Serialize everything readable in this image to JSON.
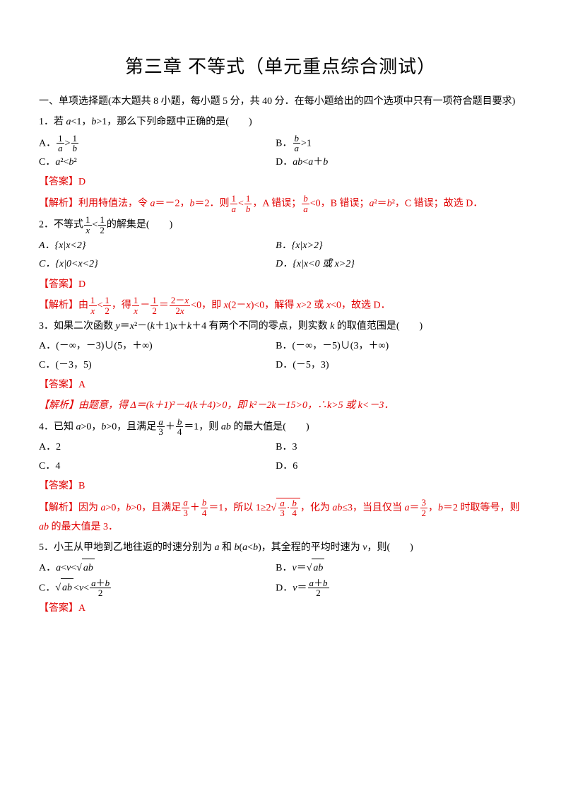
{
  "colors": {
    "text": "#000000",
    "answer": "#e10000",
    "background": "#ffffff"
  },
  "title": "第三章 不等式（单元重点综合测试）",
  "section": "一、单项选择题(本大题共 8 小题，每小题 5 分，共 40 分．在每小题给出的四个选项中只有一项符合题目要求)",
  "q1": {
    "stem_pre": "1．若 ",
    "cond1_l": "a",
    "cond1_r": "<1，",
    "cond2_l": "b",
    "cond2_r": ">1，那么下列命题中正确的是(",
    "A_pre": "A．",
    "B_pre": "B．",
    "B_post": ">1",
    "C_pre": "C．",
    "C_l": "a",
    "C_m": "²<",
    "C_r": "b",
    "C_post": "²",
    "D_pre": "D．",
    "D_l": "ab",
    "D_m": "<",
    "D_r": "a",
    "D_plus": "＋",
    "D_b": "b",
    "answer": "【答案】D",
    "sol_pre": "【解析】利用特值法，令 ",
    "sol_a": "a",
    "sol_eq1": "＝－2，",
    "sol_b": "b",
    "sol_eq2": "＝2．则",
    "sol_cmp": "，A 错误；",
    "sol_lt0": "<0，B 错误；",
    "sol_asq": "a",
    "sol_eq": "²＝",
    "sol_bsq": "b",
    "sol_eq3": "²，C 错误；故选 D．"
  },
  "q2": {
    "stem_pre": "2．不等式",
    "stem_post": "的解集是(",
    "A": "A．{x|x<2}",
    "B": "B．{x|x>2}",
    "C": "C．{x|0<x<2}",
    "D": "D．{x|x<0 或 x>2}",
    "answer": "【答案】D",
    "sol_pre": "【解析】由",
    "sol_mid1": "，得",
    "sol_mid2": "<0，即 ",
    "sol_x": "x",
    "sol_expr": "(2－",
    "sol_x2": "x",
    "sol_close": ")<0，解得 ",
    "sol_xgt": "x",
    "sol_gt2": ">2 或 ",
    "sol_xlt": "x",
    "sol_lt0": "<0，故选 D．"
  },
  "q3": {
    "stem_pre": "3．如果二次函数 ",
    "y": "y",
    "eq": "＝",
    "x": "x",
    "sq": "²－(",
    "k": "k",
    "p1": "＋1)",
    "xk": "x",
    "plus": "＋",
    "k2": "k",
    "p4": "＋4 有两个不同的零点，则实数 ",
    "k3": "k",
    "post": " 的取值范围是(",
    "A": "A．(－∞，－3)∪(5，＋∞)",
    "B": "B．(－∞，－5)∪(3，＋∞)",
    "C": "C．(－3，5)",
    "D": "D．(－5，3)",
    "answer": "【答案】A",
    "sol": "【解析】由题意，得 Δ＝(k＋1)²－4(k＋4)>0，即 k²－2k－15>0，∴k>5 或 k<－3．"
  },
  "q4": {
    "stem_pre": "4．已知 ",
    "a": "a",
    "gt0": ">0，",
    "b": "b",
    "gt02": ">0，且满足",
    "eq1": "＝1，则 ",
    "ab": "ab",
    "post": " 的最大值是(",
    "A": "A．2",
    "B": "B．3",
    "C": "C．4",
    "D": "D．6",
    "answer": "【答案】B",
    "sol_pre": "【解析】因为 ",
    "sol_a": "a",
    "sol_gt": ">0，",
    "sol_b": "b",
    "sol_gt2": ">0，且满足",
    "sol_eq1": "＝1，所以 1≥2",
    "sol_mid": "，化为 ",
    "sol_ab": "ab",
    "sol_le3": "≤3，当且仅当 ",
    "sol_a2": "a",
    "sol_eq32": "＝",
    "sol_comma": "，",
    "sol_b2": "b",
    "sol_eq2": "＝2 时取等号，则 ",
    "sol_ab2": "ab",
    "sol_fin": " 的最大值是 3．"
  },
  "q5": {
    "stem_pre": "5．小王从甲地到乙地往返的时速分别为 ",
    "a": "a",
    "and": " 和 ",
    "b": "b",
    "paren": "(",
    "a2": "a",
    "lt": "<",
    "b2": "b",
    "close": ")，其全程的平均时速为 ",
    "v": "v",
    "post": "，则(",
    "A_pre": "A．",
    "A_a": "a",
    "A_lt": "<",
    "A_v": "v",
    "A_lt2": "<",
    "B_pre": "B．",
    "B_v": "v",
    "B_eq": "＝",
    "C_pre": "C．",
    "C_lt": "<",
    "C_v": "v",
    "C_lt2": "<",
    "D_pre": "D．",
    "D_v": "v",
    "D_eq": "＝",
    "answer": "【答案】A"
  },
  "blank": "　　)"
}
